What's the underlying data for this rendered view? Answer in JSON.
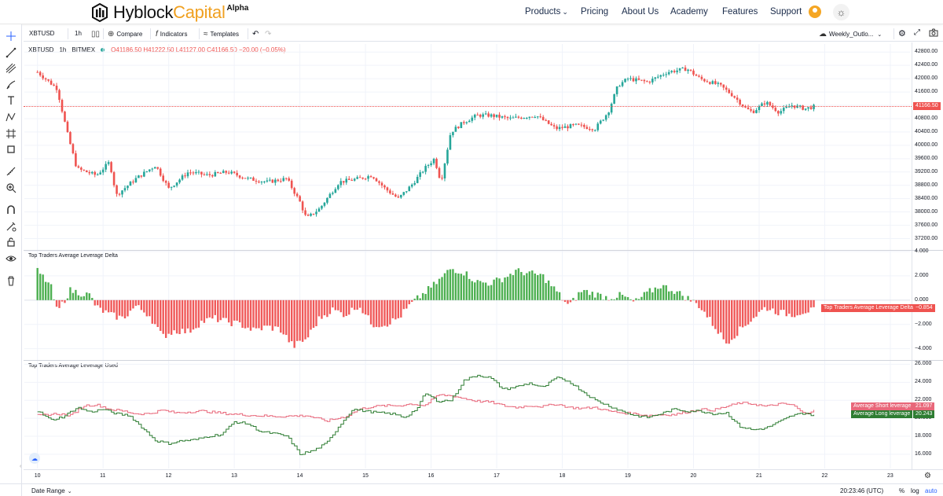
{
  "site": {
    "brand_word1": "Hyblock",
    "brand_word2": "Capital",
    "brand_tag": "Alpha",
    "nav": [
      "Products",
      "Pricing",
      "About Us",
      "Academy",
      "Features",
      "Support"
    ]
  },
  "toolbar": {
    "symbol": "XBTUSD",
    "interval": "1h",
    "compare": "Compare",
    "indicators": "Indicators",
    "templates": "Templates",
    "layout_name": "Weekly_Outlo..."
  },
  "legend": {
    "symbol": "XBTUSD",
    "interval": "1h",
    "exchange": "BITMEX",
    "ohlc": "O41186.50 H41222.50 L41127.00 C41166.50 −20.00 (−0.05%)"
  },
  "bottom": {
    "date_range": "Date Range",
    "clock": "20:23:46 (UTC)",
    "percent": "%",
    "log": "log",
    "auto": "auto"
  },
  "colors": {
    "up": "#26a69a",
    "down": "#ef5350",
    "bar_up": "#4caf50",
    "bar_down": "#f05a5a",
    "short_line": "#e8677a",
    "long_line": "#2e7d32"
  },
  "chart_data": [
    {
      "type": "candlestick",
      "title": "XBTUSD 1h BITMEX",
      "ylim": [
        37000,
        42900
      ],
      "yticks": [
        "37200.00",
        "37600.00",
        "38000.00",
        "38400.00",
        "38800.00",
        "39200.00",
        "39600.00",
        "40000.00",
        "40400.00",
        "40800.00",
        "41200.00",
        "41600.00",
        "42000.00",
        "42400.00",
        "42800.00"
      ],
      "current_price": "41166.50",
      "x_day_labels": [
        "10",
        "11",
        "12",
        "13",
        "14",
        "15",
        "16",
        "17",
        "18",
        "19",
        "20",
        "21",
        "22",
        "23"
      ],
      "xlim": [
        9.8,
        23.3
      ],
      "anchors": [
        [
          10.0,
          42200
        ],
        [
          10.3,
          41700
        ],
        [
          10.45,
          40400
        ],
        [
          10.6,
          39300
        ],
        [
          10.9,
          39100
        ],
        [
          11.1,
          39500
        ],
        [
          11.2,
          38500
        ],
        [
          11.5,
          39000
        ],
        [
          11.8,
          39400
        ],
        [
          12.0,
          38700
        ],
        [
          12.3,
          39200
        ],
        [
          12.6,
          39100
        ],
        [
          12.9,
          39200
        ],
        [
          13.2,
          39000
        ],
        [
          13.5,
          38900
        ],
        [
          13.8,
          39000
        ],
        [
          14.0,
          38300
        ],
        [
          14.1,
          37800
        ],
        [
          14.3,
          38100
        ],
        [
          14.6,
          38900
        ],
        [
          14.9,
          39000
        ],
        [
          15.1,
          39100
        ],
        [
          15.3,
          38700
        ],
        [
          15.5,
          38400
        ],
        [
          15.7,
          38800
        ],
        [
          15.9,
          39300
        ],
        [
          16.05,
          39600
        ],
        [
          16.15,
          38900
        ],
        [
          16.3,
          40400
        ],
        [
          16.5,
          40700
        ],
        [
          16.7,
          40900
        ],
        [
          16.9,
          40900
        ],
        [
          17.2,
          40800
        ],
        [
          17.6,
          40900
        ],
        [
          17.9,
          40500
        ],
        [
          18.2,
          40600
        ],
        [
          18.5,
          40500
        ],
        [
          18.7,
          41000
        ],
        [
          18.85,
          41800
        ],
        [
          19.0,
          42000
        ],
        [
          19.3,
          41900
        ],
        [
          19.6,
          42200
        ],
        [
          19.9,
          42300
        ],
        [
          20.1,
          42000
        ],
        [
          20.4,
          41800
        ],
        [
          20.6,
          41500
        ],
        [
          20.8,
          41100
        ],
        [
          20.9,
          41000
        ],
        [
          21.1,
          41300
        ],
        [
          21.3,
          41000
        ],
        [
          21.5,
          41200
        ],
        [
          21.7,
          41100
        ],
        [
          21.85,
          41166.5
        ]
      ],
      "anchor_format": "[day, price]"
    },
    {
      "type": "bar",
      "title": "Top Traders Average Leverage Delta",
      "ylim": [
        -4.8,
        4.0
      ],
      "yticks": [
        "4.000",
        "2.000",
        "0.000",
        "−2.000",
        "−4.000"
      ],
      "last_value": "−0.854",
      "anchors": [
        [
          10.0,
          2.4
        ],
        [
          10.2,
          1.2
        ],
        [
          10.3,
          -1.0
        ],
        [
          10.5,
          0.8
        ],
        [
          10.8,
          0.4
        ],
        [
          10.9,
          -0.6
        ],
        [
          11.1,
          -1.2
        ],
        [
          11.3,
          -1.5
        ],
        [
          11.5,
          -0.5
        ],
        [
          11.7,
          -1.2
        ],
        [
          11.9,
          -3.0
        ],
        [
          12.1,
          -2.5
        ],
        [
          12.3,
          -2.6
        ],
        [
          12.5,
          -1.8
        ],
        [
          12.7,
          -1.5
        ],
        [
          12.9,
          -1.8
        ],
        [
          13.1,
          -2.0
        ],
        [
          13.3,
          -2.5
        ],
        [
          13.5,
          -2.2
        ],
        [
          13.7,
          -2.4
        ],
        [
          13.9,
          -3.8
        ],
        [
          14.1,
          -3.2
        ],
        [
          14.3,
          -1.5
        ],
        [
          14.5,
          -0.8
        ],
        [
          14.7,
          -1.2
        ],
        [
          14.9,
          -0.4
        ],
        [
          15.1,
          -2.0
        ],
        [
          15.3,
          -2.0
        ],
        [
          15.5,
          -1.5
        ],
        [
          15.7,
          -0.3
        ],
        [
          15.9,
          0.6
        ],
        [
          16.1,
          1.5
        ],
        [
          16.3,
          2.6
        ],
        [
          16.5,
          2.3
        ],
        [
          16.7,
          1.5
        ],
        [
          16.9,
          1.4
        ],
        [
          17.1,
          1.8
        ],
        [
          17.3,
          2.4
        ],
        [
          17.5,
          2.2
        ],
        [
          17.7,
          2.0
        ],
        [
          17.9,
          0.8
        ],
        [
          18.1,
          -0.5
        ],
        [
          18.3,
          0.8
        ],
        [
          18.5,
          0.5
        ],
        [
          18.7,
          0.2
        ],
        [
          18.9,
          0.4
        ],
        [
          19.1,
          -0.2
        ],
        [
          19.3,
          0.6
        ],
        [
          19.5,
          1.2
        ],
        [
          19.7,
          0.8
        ],
        [
          19.9,
          0.2
        ],
        [
          20.1,
          -0.5
        ],
        [
          20.3,
          -2.0
        ],
        [
          20.5,
          -3.5
        ],
        [
          20.7,
          -2.5
        ],
        [
          20.9,
          -1.5
        ],
        [
          21.1,
          -0.6
        ],
        [
          21.3,
          -1.0
        ],
        [
          21.5,
          -1.2
        ],
        [
          21.7,
          -0.9
        ],
        [
          21.85,
          -0.854
        ]
      ]
    },
    {
      "type": "line",
      "title": "Top Traders Average Leverage Used",
      "ylim": [
        14.5,
        26.3
      ],
      "yticks": [
        "16.000",
        "18.000",
        "20.000",
        "22.000",
        "24.000",
        "26.000"
      ],
      "series": [
        {
          "name": "Average Short leverage",
          "last_value": "21.097",
          "anchors": [
            [
              10.0,
              20.3
            ],
            [
              10.3,
              20.5
            ],
            [
              10.5,
              20.3
            ],
            [
              10.7,
              21.4
            ],
            [
              10.9,
              21.5
            ],
            [
              11.1,
              21.0
            ],
            [
              11.3,
              20.8
            ],
            [
              11.5,
              20.5
            ],
            [
              11.7,
              20.5
            ],
            [
              11.9,
              20.9
            ],
            [
              12.1,
              20.6
            ],
            [
              12.5,
              20.8
            ],
            [
              12.9,
              20.5
            ],
            [
              13.3,
              20.3
            ],
            [
              13.7,
              20.2
            ],
            [
              14.1,
              20.3
            ],
            [
              14.4,
              19.7
            ],
            [
              14.7,
              20.2
            ],
            [
              14.9,
              21.0
            ],
            [
              15.1,
              21.3
            ],
            [
              15.3,
              21.4
            ],
            [
              15.5,
              21.4
            ],
            [
              15.7,
              21.6
            ],
            [
              15.9,
              21.4
            ],
            [
              16.1,
              22.6
            ],
            [
              16.3,
              22.5
            ],
            [
              16.5,
              22.2
            ],
            [
              16.7,
              21.9
            ],
            [
              16.9,
              21.8
            ],
            [
              17.1,
              21.4
            ],
            [
              17.3,
              21.2
            ],
            [
              17.5,
              21.4
            ],
            [
              17.7,
              21.3
            ],
            [
              17.9,
              21.6
            ],
            [
              18.1,
              21.2
            ],
            [
              18.3,
              21.1
            ],
            [
              18.5,
              21.2
            ],
            [
              18.7,
              20.8
            ],
            [
              18.9,
              20.6
            ],
            [
              19.1,
              20.5
            ],
            [
              19.3,
              20.3
            ],
            [
              19.5,
              20.4
            ],
            [
              19.7,
              20.4
            ],
            [
              19.9,
              20.7
            ],
            [
              20.1,
              21.0
            ],
            [
              20.3,
              20.9
            ],
            [
              20.5,
              21.3
            ],
            [
              20.7,
              21.7
            ],
            [
              20.9,
              21.6
            ],
            [
              21.1,
              21.3
            ],
            [
              21.3,
              21.6
            ],
            [
              21.5,
              21.5
            ],
            [
              21.7,
              20.4
            ],
            [
              21.85,
              21.097
            ]
          ]
        },
        {
          "name": "Average Long leverage",
          "last_value": "20.243",
          "anchors": [
            [
              10.0,
              20.8
            ],
            [
              10.2,
              19.8
            ],
            [
              10.4,
              20.2
            ],
            [
              10.6,
              21.2
            ],
            [
              10.8,
              20.7
            ],
            [
              11.0,
              21.0
            ],
            [
              11.2,
              20.5
            ],
            [
              11.4,
              20.3
            ],
            [
              11.6,
              18.9
            ],
            [
              11.8,
              17.5
            ],
            [
              12.0,
              17.2
            ],
            [
              12.2,
              17.5
            ],
            [
              12.4,
              17.6
            ],
            [
              12.6,
              18.0
            ],
            [
              12.8,
              18.2
            ],
            [
              13.0,
              19.6
            ],
            [
              13.2,
              19.4
            ],
            [
              13.4,
              18.5
            ],
            [
              13.6,
              18.3
            ],
            [
              13.8,
              18.0
            ],
            [
              14.0,
              16.0
            ],
            [
              14.2,
              16.4
            ],
            [
              14.4,
              17.2
            ],
            [
              14.6,
              19.2
            ],
            [
              14.8,
              21.0
            ],
            [
              15.0,
              20.8
            ],
            [
              15.2,
              20.6
            ],
            [
              15.4,
              20.5
            ],
            [
              15.6,
              20.1
            ],
            [
              15.8,
              21.2
            ],
            [
              15.9,
              22.8
            ],
            [
              16.1,
              21.9
            ],
            [
              16.3,
              22.0
            ],
            [
              16.5,
              24.2
            ],
            [
              16.7,
              24.8
            ],
            [
              16.9,
              24.5
            ],
            [
              17.1,
              23.2
            ],
            [
              17.3,
              23.5
            ],
            [
              17.5,
              23.9
            ],
            [
              17.7,
              23.4
            ],
            [
              17.9,
              24.5
            ],
            [
              18.1,
              24.1
            ],
            [
              18.3,
              23.0
            ],
            [
              18.5,
              22.0
            ],
            [
              18.7,
              21.4
            ],
            [
              18.9,
              20.8
            ],
            [
              19.1,
              20.3
            ],
            [
              19.3,
              20.1
            ],
            [
              19.5,
              20.5
            ],
            [
              19.7,
              21.0
            ],
            [
              19.9,
              20.8
            ],
            [
              20.1,
              20.8
            ],
            [
              20.3,
              20.5
            ],
            [
              20.5,
              20.6
            ],
            [
              20.7,
              19.1
            ],
            [
              20.9,
              18.7
            ],
            [
              21.1,
              18.9
            ],
            [
              21.3,
              19.6
            ],
            [
              21.5,
              20.3
            ],
            [
              21.7,
              20.6
            ],
            [
              21.85,
              20.243
            ]
          ]
        }
      ]
    }
  ]
}
